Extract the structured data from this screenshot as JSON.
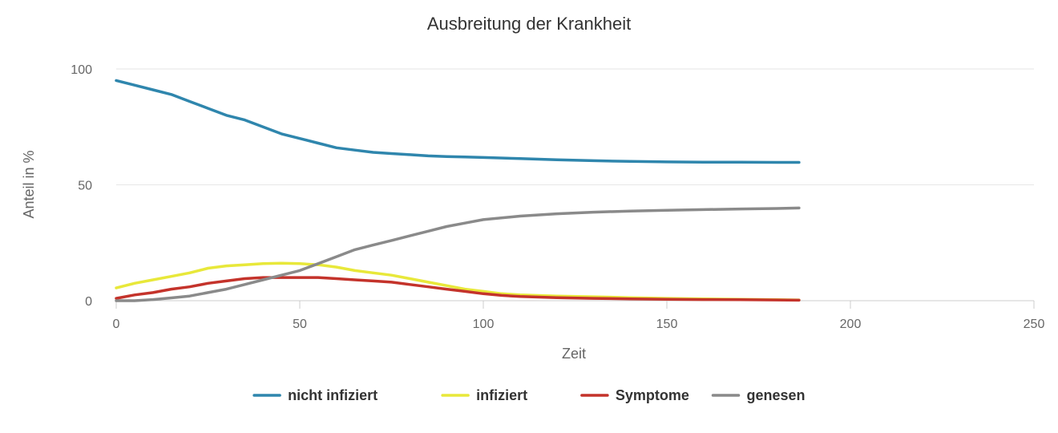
{
  "chart_data": {
    "type": "line",
    "title": "Ausbreitung der Krankheit",
    "xlabel": "Zeit",
    "ylabel": "Anteil in %",
    "xlim": [
      0,
      250
    ],
    "ylim": [
      0,
      100
    ],
    "xticks": [
      0,
      50,
      100,
      150,
      200,
      250
    ],
    "yticks": [
      0,
      50,
      100
    ],
    "grid": "horizontal",
    "legend_position": "bottom",
    "series": [
      {
        "name": "nicht infiziert",
        "color": "#2f86ad",
        "points": [
          [
            0,
            95
          ],
          [
            5,
            93
          ],
          [
            10,
            91
          ],
          [
            15,
            89
          ],
          [
            20,
            86
          ],
          [
            25,
            83
          ],
          [
            30,
            80
          ],
          [
            35,
            78
          ],
          [
            40,
            75
          ],
          [
            45,
            72
          ],
          [
            50,
            70
          ],
          [
            55,
            68
          ],
          [
            60,
            66
          ],
          [
            65,
            65
          ],
          [
            70,
            64
          ],
          [
            75,
            63.5
          ],
          [
            80,
            63
          ],
          [
            85,
            62.5
          ],
          [
            90,
            62.2
          ],
          [
            95,
            62
          ],
          [
            100,
            61.8
          ],
          [
            110,
            61.3
          ],
          [
            120,
            60.8
          ],
          [
            130,
            60.4
          ],
          [
            140,
            60.1
          ],
          [
            150,
            59.9
          ],
          [
            160,
            59.8
          ],
          [
            170,
            59.8
          ],
          [
            180,
            59.7
          ],
          [
            186,
            59.7
          ]
        ]
      },
      {
        "name": "infiziert",
        "color": "#e8e83a",
        "points": [
          [
            0,
            5.5
          ],
          [
            5,
            7.5
          ],
          [
            10,
            9
          ],
          [
            15,
            10.5
          ],
          [
            20,
            12
          ],
          [
            25,
            14
          ],
          [
            30,
            15
          ],
          [
            35,
            15.5
          ],
          [
            40,
            16
          ],
          [
            45,
            16.2
          ],
          [
            50,
            16
          ],
          [
            55,
            15.5
          ],
          [
            60,
            14.5
          ],
          [
            65,
            13
          ],
          [
            70,
            12
          ],
          [
            75,
            11
          ],
          [
            80,
            9.5
          ],
          [
            85,
            8
          ],
          [
            90,
            6.5
          ],
          [
            95,
            5
          ],
          [
            100,
            4
          ],
          [
            105,
            3
          ],
          [
            110,
            2.5
          ],
          [
            120,
            2
          ],
          [
            130,
            1.7
          ],
          [
            140,
            1.3
          ],
          [
            150,
            1
          ],
          [
            160,
            0.8
          ],
          [
            170,
            0.6
          ],
          [
            180,
            0.4
          ],
          [
            186,
            0.3
          ]
        ]
      },
      {
        "name": "Symptome",
        "color": "#c4332b",
        "points": [
          [
            0,
            1
          ],
          [
            5,
            2.5
          ],
          [
            10,
            3.5
          ],
          [
            15,
            5
          ],
          [
            20,
            6
          ],
          [
            25,
            7.5
          ],
          [
            30,
            8.5
          ],
          [
            35,
            9.5
          ],
          [
            40,
            10
          ],
          [
            45,
            10
          ],
          [
            50,
            10
          ],
          [
            55,
            10
          ],
          [
            60,
            9.5
          ],
          [
            65,
            9
          ],
          [
            70,
            8.5
          ],
          [
            75,
            8
          ],
          [
            80,
            7
          ],
          [
            85,
            6
          ],
          [
            90,
            5
          ],
          [
            95,
            4
          ],
          [
            100,
            3
          ],
          [
            105,
            2.3
          ],
          [
            110,
            1.8
          ],
          [
            120,
            1.3
          ],
          [
            130,
            1
          ],
          [
            140,
            0.8
          ],
          [
            150,
            0.6
          ],
          [
            160,
            0.5
          ],
          [
            170,
            0.4
          ],
          [
            180,
            0.3
          ],
          [
            186,
            0.2
          ]
        ]
      },
      {
        "name": "genesen",
        "color": "#8a8a8a",
        "points": [
          [
            0,
            0
          ],
          [
            5,
            0
          ],
          [
            10,
            0.5
          ],
          [
            15,
            1.2
          ],
          [
            20,
            2
          ],
          [
            25,
            3.5
          ],
          [
            30,
            5
          ],
          [
            35,
            7
          ],
          [
            40,
            9
          ],
          [
            45,
            11
          ],
          [
            50,
            13
          ],
          [
            55,
            16
          ],
          [
            60,
            19
          ],
          [
            65,
            22
          ],
          [
            70,
            24
          ],
          [
            75,
            26
          ],
          [
            80,
            28
          ],
          [
            85,
            30
          ],
          [
            90,
            32
          ],
          [
            95,
            33.5
          ],
          [
            100,
            35
          ],
          [
            110,
            36.5
          ],
          [
            120,
            37.5
          ],
          [
            130,
            38.2
          ],
          [
            140,
            38.7
          ],
          [
            150,
            39
          ],
          [
            160,
            39.3
          ],
          [
            170,
            39.6
          ],
          [
            180,
            39.8
          ],
          [
            186,
            40
          ]
        ]
      }
    ]
  }
}
